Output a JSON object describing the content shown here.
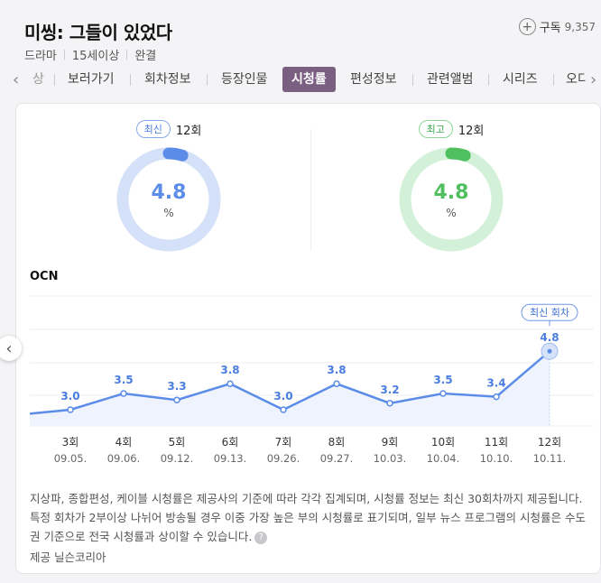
{
  "title": "미씽: 그들이 있었다",
  "meta": {
    "genre": "드라마",
    "rating": "15세이상",
    "status": "완결"
  },
  "subscribe": {
    "label": "구독",
    "count": "9,357",
    "icon": "plus-circle-icon"
  },
  "tabs": [
    {
      "label": "상"
    },
    {
      "label": "보러가기"
    },
    {
      "label": "회차정보"
    },
    {
      "label": "등장인물"
    },
    {
      "label": "시청률"
    },
    {
      "label": "편성정보"
    },
    {
      "label": "관련앨범"
    },
    {
      "label": "시리즈"
    },
    {
      "label": "오디"
    }
  ],
  "tab_prev_icon": "‹",
  "tab_next_icon": "›",
  "gauges": {
    "latest": {
      "badge": "최신",
      "episode": "12회",
      "value": "4.8",
      "unit": "%",
      "color": "#5b8ce8",
      "track": "#d5e1f8"
    },
    "best": {
      "badge": "최고",
      "episode": "12회",
      "value": "4.8",
      "unit": "%",
      "color": "#4fbf5f",
      "track": "#d3f0d8"
    }
  },
  "channel": "OCN",
  "chart_data": {
    "type": "line",
    "categories": [
      "3회",
      "4회",
      "5회",
      "6회",
      "7회",
      "8회",
      "9회",
      "10회",
      "11회",
      "12회"
    ],
    "dates": [
      "09.05.",
      "09.06.",
      "09.12.",
      "09.13.",
      "09.26.",
      "09.27.",
      "10.03.",
      "10.04.",
      "10.10.",
      "10.11."
    ],
    "values": [
      3.0,
      3.5,
      3.3,
      3.8,
      3.0,
      3.8,
      3.2,
      3.5,
      3.4,
      4.8
    ],
    "highlight_label": "최신 회차",
    "line_color": "#5b8ce8",
    "area_color": "#eef3fd"
  },
  "notice": "지상파, 종합편성, 케이블 시청률은 제공사의 기준에 따라 각각 집계되며, 시청률 정보는 최신 30회차까지 제공됩니다. 특정 회차가 2부이상 나뉘어 방송될 경우 이중 가장 높은 부의 시청률로 표기되며, 일부 뉴스 프로그램의 시청률은 수도권 기준으로 전국 시청률과 상이할 수 있습니다.",
  "help_icon": "?",
  "provider": "제공 닐슨코리아",
  "side_nav_icon": "‹"
}
